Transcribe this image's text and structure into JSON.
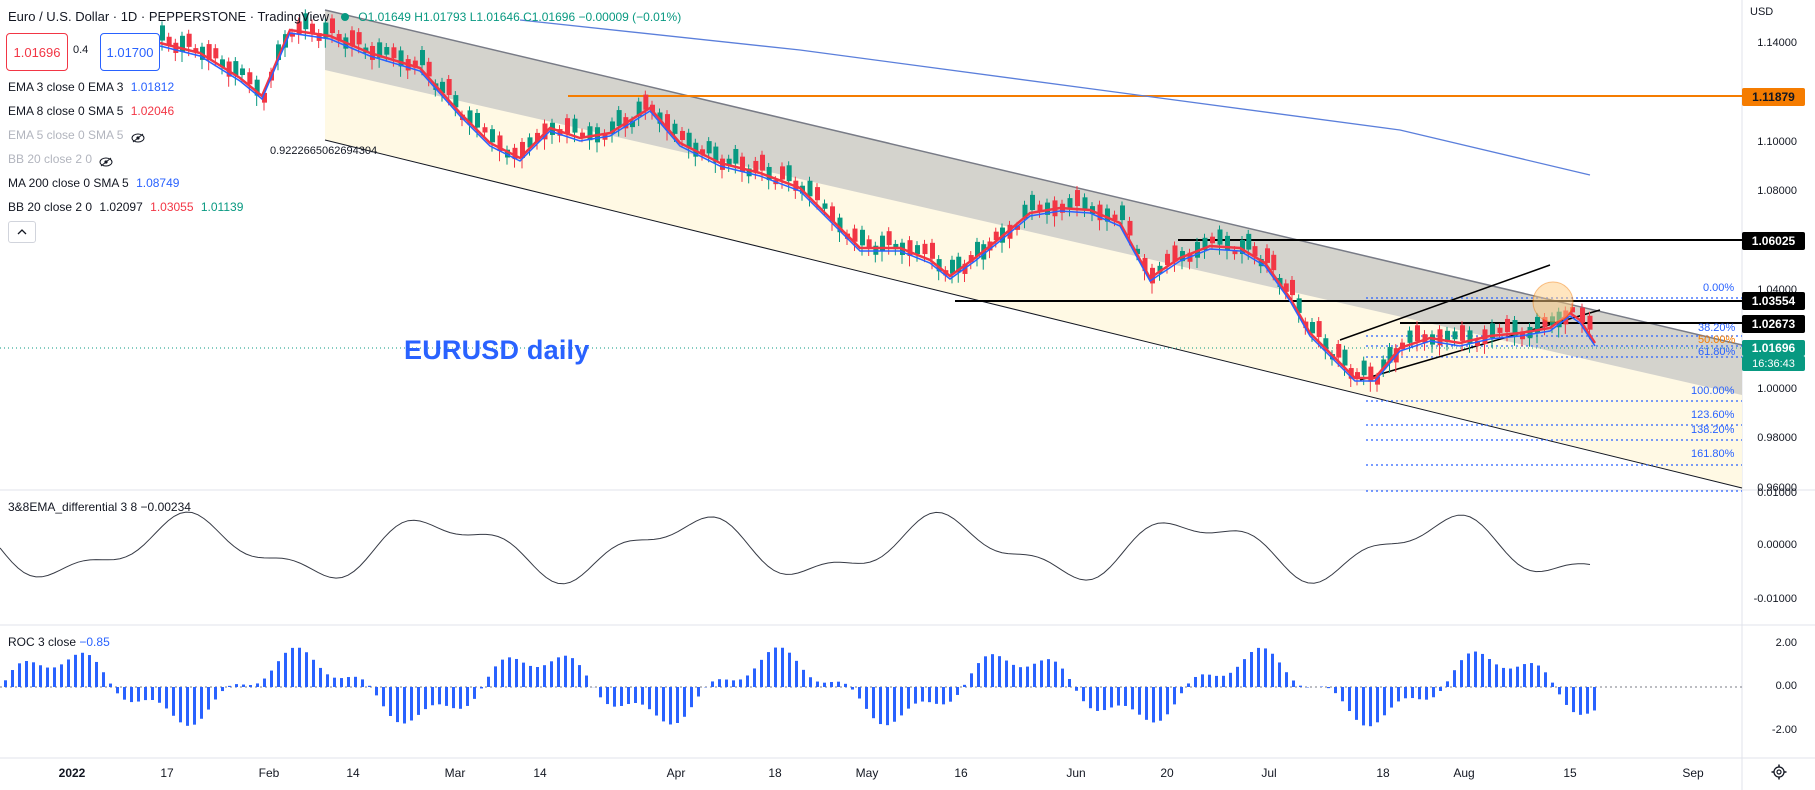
{
  "header": {
    "symbol": "Euro / U.S. Dollar · 1D · PEPPERSTONE · TradingView",
    "ohlc": "O1.01649 H1.01793 L1.01646 C1.01696 −0.00009 (−0.01%)"
  },
  "trade": {
    "sell": "1.01696",
    "spread": "0.4",
    "buy": "1.01700"
  },
  "indicators": [
    {
      "label": "EMA 3 close 0 EMA 3",
      "value": "1.01812",
      "color": "#2962ff"
    },
    {
      "label": "EMA 8 close 0 SMA 5",
      "value": "1.02046",
      "color": "#f23645"
    },
    {
      "label": "EMA 5 close 0 SMA 5",
      "value": "",
      "color": "#b2b5be",
      "hidden": true
    },
    {
      "label": "BB 20 close 2 0",
      "value": "",
      "color": "#b2b5be",
      "hidden": true
    },
    {
      "label": "MA 200 close 0 SMA 5",
      "value": "1.08749",
      "color": "#2962ff"
    },
    {
      "label": "BB 20 close 2 0",
      "value": "1.02097",
      "value2": "1.03055",
      "value3": "1.01139",
      "color": "#131722"
    }
  ],
  "annotation": "0.9222665062694304",
  "watermark": "EURUSD daily",
  "currency": "USD",
  "price_axis": [
    "1.14000",
    "1.10000",
    "1.08000",
    "1.04000",
    "1.00000",
    "0.98000",
    "0.96000"
  ],
  "price_tags": {
    "orange": "1.11879",
    "level1": "1.06025",
    "level2": "1.03554",
    "level3": "1.02673",
    "last": "1.01696",
    "countdown": "16:36:43"
  },
  "fib_labels": [
    "0.00%",
    "38.20%",
    "50.00%",
    "61.80%",
    "100.00%",
    "123.60%",
    "138.20%",
    "161.80%"
  ],
  "pane2": {
    "title": "3&8EMA_differential 3 8",
    "value": "−0.00234",
    "axis": [
      "0.01000",
      "0.00000",
      "-0.01000"
    ]
  },
  "pane3": {
    "title": "ROC 3 close",
    "value": "−0.85",
    "axis": [
      "2.00",
      "0.00",
      "-2.00"
    ]
  },
  "time_axis": [
    "2022",
    "17",
    "Feb",
    "14",
    "Mar",
    "14",
    "Apr",
    "18",
    "May",
    "16",
    "Jun",
    "20",
    "Jul",
    "18",
    "Aug",
    "15",
    "Sep"
  ],
  "colors": {
    "up": "#089981",
    "down": "#f23645",
    "ema3": "#2962ff",
    "ema8": "#f23645",
    "ma200": "#5b7fdb",
    "orange": "#f57c00"
  },
  "icons": {
    "eye": "eye-crossed-icon",
    "collapse": "chevron-up-icon",
    "settings": "gear-icon"
  }
}
